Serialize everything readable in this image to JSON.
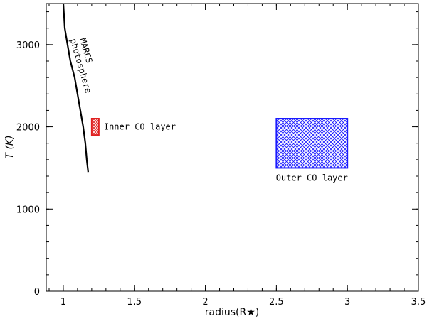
{
  "chart_data": {
    "type": "line",
    "xlabel": "radius(R★)",
    "ylabel": "T (K)",
    "xlim": [
      0.88,
      3.5
    ],
    "ylim": [
      0,
      3500
    ],
    "xticks": [
      1,
      1.5,
      2,
      2.5,
      3,
      3.5
    ],
    "xtick_labels": [
      "1",
      "1.5",
      "2",
      "2.5",
      "3",
      "3.5"
    ],
    "yticks": [
      0,
      1000,
      2000,
      3000
    ],
    "ytick_labels": [
      "0",
      "1000",
      "2000",
      "3000"
    ],
    "x_minor_step": 0.1,
    "y_minor_step": 200,
    "grid": false,
    "series": [
      {
        "name": "MARCS photosphere",
        "color": "#000000",
        "points": [
          [
            1.0,
            3500
          ],
          [
            1.01,
            3200
          ],
          [
            1.03,
            3000
          ],
          [
            1.05,
            2800
          ],
          [
            1.08,
            2600
          ],
          [
            1.1,
            2400
          ],
          [
            1.12,
            2200
          ],
          [
            1.14,
            2000
          ],
          [
            1.155,
            1800
          ],
          [
            1.165,
            1600
          ],
          [
            1.175,
            1450
          ]
        ]
      }
    ],
    "regions": [
      {
        "label": "Inner CO layer",
        "x": [
          1.2,
          1.25
        ],
        "y": [
          1900,
          2100
        ],
        "color": "#e02020"
      },
      {
        "label": "Outer CO layer",
        "x": [
          2.5,
          3.0
        ],
        "y": [
          1500,
          2100
        ],
        "color": "#1a1aff"
      }
    ],
    "annotations": {
      "photosphere_label_line1": "MARCS",
      "photosphere_label_line2": "photosphere"
    }
  }
}
